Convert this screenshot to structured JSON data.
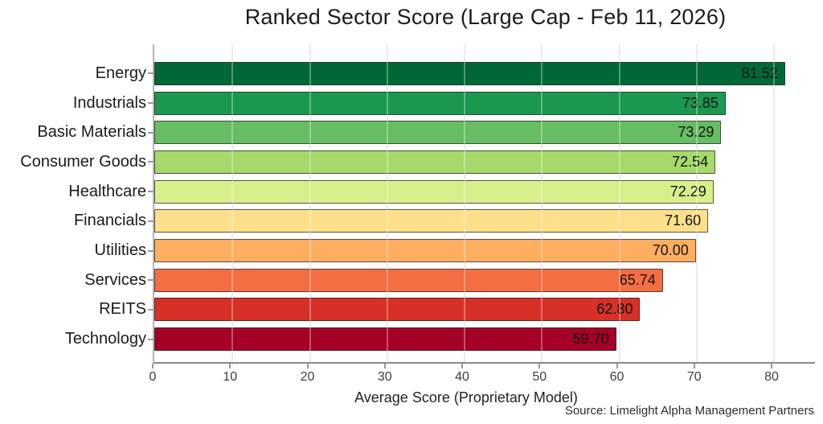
{
  "chart_data": {
    "type": "bar",
    "orientation": "horizontal",
    "title": "Ranked Sector Score (Large Cap - Feb 11, 2026)",
    "xlabel": "Average Score (Proprietary Model)",
    "ylabel": "",
    "source": "Source: Limelight Alpha Management Partners",
    "categories": [
      "Energy",
      "Industrials",
      "Basic Materials",
      "Consumer Goods",
      "Healthcare",
      "Financials",
      "Utilities",
      "Services",
      "REITS",
      "Technology"
    ],
    "values": [
      81.52,
      73.85,
      73.29,
      72.54,
      72.29,
      71.6,
      70.0,
      65.74,
      62.8,
      59.7
    ],
    "value_labels": [
      "81.52",
      "73.85",
      "73.29",
      "72.54",
      "72.29",
      "71.60",
      "70.00",
      "65.74",
      "62.80",
      "59.70"
    ],
    "bar_colors": [
      "#006837",
      "#1a9850",
      "#66bd63",
      "#a6d96a",
      "#d9ef8b",
      "#fee08b",
      "#fdae61",
      "#f46d43",
      "#d73027",
      "#a50026"
    ],
    "xlim": [
      0,
      85.4
    ],
    "xticks": [
      0,
      10,
      20,
      30,
      40,
      50,
      60,
      70,
      80
    ],
    "grid": "vertical",
    "legend": "none"
  },
  "style_colors": {
    "bar_border": "#2d2d2d",
    "gridline": "#e4e4e4",
    "axis_line": "#8a8a8a",
    "text": "#1f1f1f"
  }
}
